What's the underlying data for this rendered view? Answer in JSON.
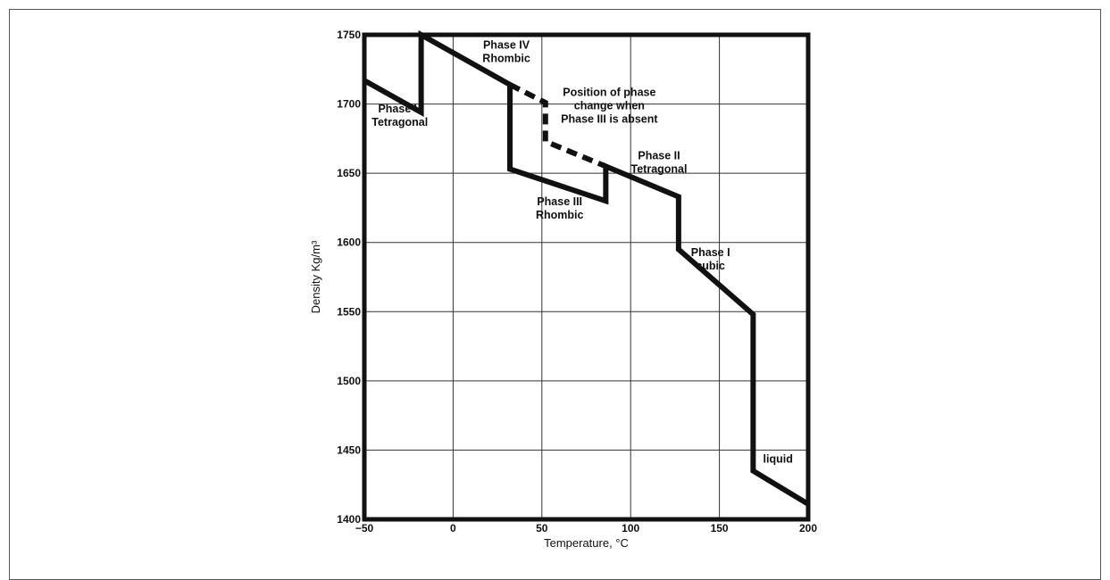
{
  "chart_data": {
    "type": "line",
    "title": "",
    "xlabel": "Temperature, °C",
    "ylabel": "Density Kg/m³",
    "xlim": [
      -50,
      200
    ],
    "ylim": [
      1400,
      1750
    ],
    "x_ticks": [
      -50,
      0,
      50,
      100,
      150,
      200
    ],
    "x_tick_labels": [
      "−50",
      "0",
      "50",
      "100",
      "150",
      "200"
    ],
    "y_ticks": [
      1400,
      1450,
      1500,
      1550,
      1600,
      1650,
      1700,
      1750
    ],
    "grid": true,
    "series": [
      {
        "style": "solid",
        "x": [
          -50,
          -18,
          -18,
          32,
          32,
          32,
          86,
          86,
          127,
          127,
          169,
          169,
          200
        ],
        "y": [
          1717,
          1694,
          1750,
          1714,
          1714,
          1653,
          1630,
          1655,
          1633,
          1595,
          1548,
          1435,
          1411
        ]
      },
      {
        "style": "dashed",
        "x": [
          32,
          52,
          52,
          86
        ],
        "y": [
          1714,
          1701,
          1673,
          1655
        ]
      }
    ],
    "annotations": [
      {
        "lines": [
          "Phase V",
          "Tetragonal"
        ],
        "x": -30,
        "y": 1694
      },
      {
        "lines": [
          "Phase IV",
          "Rhombic"
        ],
        "x": 30,
        "y": 1740
      },
      {
        "lines": [
          "Position of phase",
          "change when",
          "Phase III is absent"
        ],
        "x": 88,
        "y": 1706
      },
      {
        "lines": [
          "Phase II",
          "Tetragonal"
        ],
        "x": 116,
        "y": 1660
      },
      {
        "lines": [
          "Phase III",
          "Rhombic"
        ],
        "x": 60,
        "y": 1627
      },
      {
        "lines": [
          "Phase I",
          "cubic"
        ],
        "x": 145,
        "y": 1590
      },
      {
        "lines": [
          "liquid"
        ],
        "x": 183,
        "y": 1441
      }
    ]
  }
}
